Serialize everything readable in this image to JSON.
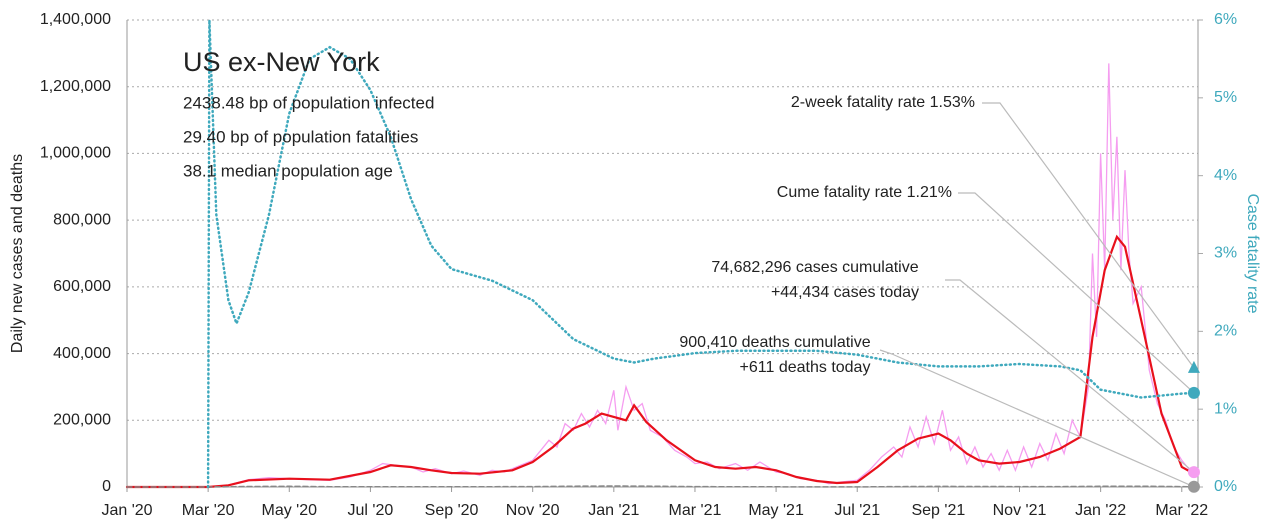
{
  "chart_data": {
    "type": "line",
    "title": "US ex-New York",
    "subtitle_lines": [
      "2438.48 bp of population infected",
      "29.40 bp of population fatalities",
      "38.1 median population age"
    ],
    "y_label": "Daily new cases and deaths",
    "y2_label": "Case fatality rate",
    "grid": true,
    "xlim": [
      0,
      26.4
    ],
    "xticks": [
      {
        "value": 0,
        "label": "Jan '20"
      },
      {
        "value": 2,
        "label": "Mar '20"
      },
      {
        "value": 4,
        "label": "May '20"
      },
      {
        "value": 6,
        "label": "Jul '20"
      },
      {
        "value": 8,
        "label": "Sep '20"
      },
      {
        "value": 10,
        "label": "Nov '20"
      },
      {
        "value": 12,
        "label": "Jan '21"
      },
      {
        "value": 14,
        "label": "Mar '21"
      },
      {
        "value": 16,
        "label": "May '21"
      },
      {
        "value": 18,
        "label": "Jul '21"
      },
      {
        "value": 20,
        "label": "Sep '21"
      },
      {
        "value": 22,
        "label": "Nov '21"
      },
      {
        "value": 24,
        "label": "Jan '22"
      },
      {
        "value": 26,
        "label": "Mar '22"
      }
    ],
    "ylim": [
      0,
      1400000
    ],
    "yticks": [
      0,
      {
        "value": 200000,
        "label": "200,000"
      },
      {
        "value": 400000,
        "label": "400,000"
      },
      {
        "value": 600000,
        "label": "600,000"
      },
      {
        "value": 800000,
        "label": "800,000"
      },
      {
        "value": 1000000,
        "label": "1,000,000"
      },
      {
        "value": 1200000,
        "label": "1,200,000"
      },
      {
        "value": 1400000,
        "label": "1,400,000"
      }
    ],
    "y2lim": [
      0,
      6
    ],
    "y2ticks": [
      {
        "value": 0,
        "label": "0%"
      },
      {
        "value": 1,
        "label": "1%"
      },
      {
        "value": 2,
        "label": "2%"
      },
      {
        "value": 3,
        "label": "3%"
      },
      {
        "value": 4,
        "label": "4%"
      },
      {
        "value": 5,
        "label": "5%"
      },
      {
        "value": 6,
        "label": "6%"
      }
    ],
    "series": [
      {
        "color": "#f59df0",
        "width": 1.3,
        "dash": "",
        "x": [
          0,
          2,
          2.5,
          3,
          3.5,
          4,
          4.5,
          5,
          5.5,
          6,
          6.3,
          6.6,
          7,
          7.3,
          7.6,
          8,
          8.3,
          8.7,
          9,
          9.3,
          9.6,
          10,
          10.2,
          10.4,
          10.6,
          10.8,
          11,
          11.2,
          11.4,
          11.6,
          11.8,
          12,
          12.1,
          12.3,
          12.5,
          12.7,
          12.9,
          13.2,
          13.5,
          13.8,
          14,
          14.3,
          14.6,
          15,
          15.3,
          15.6,
          16,
          16.3,
          16.6,
          17,
          17.3,
          17.6,
          18,
          18.3,
          18.6,
          18.9,
          19.1,
          19.3,
          19.5,
          19.7,
          19.9,
          20.1,
          20.3,
          20.5,
          20.7,
          20.9,
          21.1,
          21.3,
          21.5,
          21.7,
          21.9,
          22.1,
          22.3,
          22.5,
          22.7,
          22.9,
          23.1,
          23.3,
          23.5,
          23.7,
          23.8,
          23.9,
          24,
          24.1,
          24.2,
          24.3,
          24.4,
          24.5,
          24.6,
          24.7,
          24.8,
          25,
          25.2,
          25.4,
          25.6,
          25.8,
          26,
          26.2,
          26.3
        ],
        "values": [
          0,
          0,
          6000,
          22000,
          28000,
          25000,
          22000,
          20000,
          30000,
          50000,
          70000,
          65000,
          60000,
          45000,
          55000,
          40000,
          48000,
          35000,
          50000,
          45000,
          60000,
          80000,
          110000,
          140000,
          120000,
          190000,
          170000,
          220000,
          180000,
          230000,
          190000,
          290000,
          170000,
          300000,
          230000,
          250000,
          170000,
          150000,
          110000,
          90000,
          70000,
          75000,
          55000,
          70000,
          50000,
          75000,
          45000,
          40000,
          25000,
          20000,
          10000,
          15000,
          20000,
          50000,
          90000,
          120000,
          90000,
          180000,
          120000,
          210000,
          130000,
          230000,
          110000,
          150000,
          70000,
          120000,
          60000,
          100000,
          50000,
          110000,
          50000,
          120000,
          60000,
          130000,
          80000,
          160000,
          100000,
          200000,
          150000,
          300000,
          700000,
          450000,
          1000000,
          650000,
          1270000,
          800000,
          1050000,
          650000,
          950000,
          700000,
          550000,
          600000,
          350000,
          250000,
          200000,
          120000,
          80000,
          50000,
          44434
        ]
      },
      {
        "color": "#e8101c",
        "width": 2.2,
        "dash": "",
        "x": [
          0,
          2,
          2.5,
          3,
          4,
          5,
          6,
          6.5,
          7,
          7.5,
          8,
          8.7,
          9.5,
          10,
          10.5,
          11,
          11.3,
          11.7,
          12,
          12.3,
          12.5,
          12.8,
          13.3,
          14,
          14.5,
          15,
          15.5,
          16,
          16.5,
          17,
          17.5,
          18,
          18.5,
          19,
          19.5,
          20,
          20.3,
          20.7,
          21,
          21.5,
          22,
          22.5,
          23,
          23.5,
          23.8,
          24.1,
          24.4,
          24.6,
          25,
          25.5,
          26,
          26.3
        ],
        "values": [
          0,
          0,
          5000,
          20000,
          25000,
          22000,
          45000,
          65000,
          60000,
          50000,
          42000,
          40000,
          50000,
          75000,
          120000,
          175000,
          190000,
          220000,
          210000,
          200000,
          245000,
          195000,
          140000,
          80000,
          60000,
          55000,
          60000,
          50000,
          30000,
          18000,
          12000,
          15000,
          60000,
          110000,
          145000,
          160000,
          140000,
          100000,
          80000,
          70000,
          75000,
          90000,
          115000,
          150000,
          450000,
          650000,
          750000,
          720000,
          500000,
          220000,
          60000,
          40000
        ]
      },
      {
        "color": "#888888",
        "width": 1.5,
        "dash": "5 3",
        "x": [
          0,
          2,
          3,
          4,
          5,
          6,
          7,
          8,
          9,
          10,
          11,
          12,
          13,
          14,
          15,
          16,
          17,
          18,
          19,
          20,
          21,
          22,
          23,
          24,
          25,
          26,
          26.3
        ],
        "values": [
          0,
          0,
          1500,
          2000,
          1000,
          800,
          1000,
          900,
          800,
          1200,
          2500,
          3000,
          2500,
          1200,
          700,
          600,
          300,
          400,
          1200,
          1800,
          1500,
          1200,
          1300,
          2200,
          2500,
          1200,
          611
        ]
      },
      {
        "color": "#3fa9bd",
        "width": 2.5,
        "dash": "1 3.5",
        "axis": "y2",
        "x": [
          2,
          2.03,
          2.2,
          2.5,
          2.7,
          3,
          3.5,
          4,
          4.5,
          5,
          5.5,
          6,
          6.5,
          7,
          7.5,
          8,
          9,
          10,
          11,
          12,
          12.5,
          13,
          14,
          15,
          17,
          18,
          19,
          20,
          21,
          22,
          23,
          23.5,
          24,
          24.5,
          25,
          26,
          26.3
        ],
        "values": [
          0,
          6,
          3.5,
          2.4,
          2.1,
          2.5,
          3.5,
          4.8,
          5.5,
          5.65,
          5.5,
          5.1,
          4.5,
          3.7,
          3.1,
          2.8,
          2.65,
          2.4,
          1.9,
          1.65,
          1.6,
          1.65,
          1.72,
          1.75,
          1.75,
          1.7,
          1.6,
          1.55,
          1.55,
          1.58,
          1.55,
          1.5,
          1.25,
          1.2,
          1.15,
          1.2,
          1.21
        ]
      }
    ],
    "markers": [
      {
        "x": 26.3,
        "value": 1.53,
        "axis": "y2",
        "shape": "triangle",
        "color": "#3fa9bd"
      },
      {
        "x": 26.3,
        "value": 1.21,
        "axis": "y2",
        "shape": "circle",
        "color": "#3fa9bd"
      },
      {
        "x": 26.3,
        "value": 44434,
        "shape": "circle",
        "color": "#f59df0"
      },
      {
        "x": 26.3,
        "value": 611,
        "shape": "circle",
        "color": "#999999"
      }
    ],
    "annotations": [
      [
        "2-week fatality rate 1.53%"
      ],
      [
        "Cume fatality rate 1.21%"
      ],
      [
        "74,682,296 cases cumulative",
        "+44,434 cases today"
      ],
      [
        "900,410 deaths cumulative",
        "+611 deaths today"
      ]
    ]
  }
}
